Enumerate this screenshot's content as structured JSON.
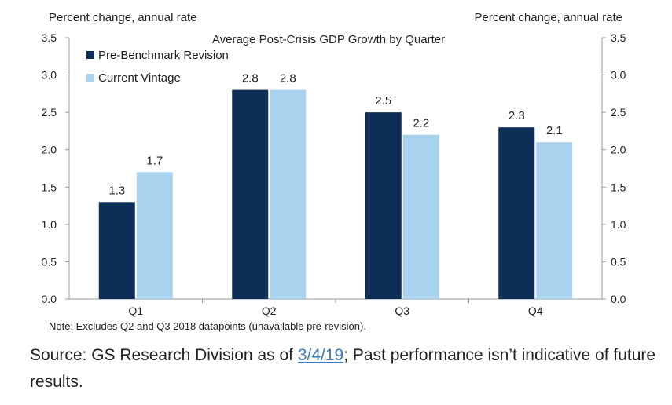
{
  "chart_data": {
    "type": "bar",
    "title": "Average Post-Crisis GDP Growth by Quarter",
    "ylabel_left": "Percent change, annual rate",
    "ylabel_right": "Percent change, annual rate",
    "categories": [
      "Q1",
      "Q2",
      "Q3",
      "Q4"
    ],
    "series": [
      {
        "name": "Pre-Benchmark Revision",
        "values": [
          1.3,
          2.8,
          2.5,
          2.3
        ],
        "labels": [
          "1.3",
          "2.8",
          "2.5",
          "2.3"
        ],
        "color": "#0d2f57"
      },
      {
        "name": "Current Vintage",
        "values": [
          1.7,
          2.8,
          2.2,
          2.1
        ],
        "labels": [
          "1.7",
          "2.8",
          "2.2",
          "2.1"
        ],
        "color": "#a9d2ee"
      }
    ],
    "ylim": [
      0,
      3.5
    ],
    "yticks": [
      "0.0",
      "0.5",
      "1.0",
      "1.5",
      "2.0",
      "2.5",
      "3.0",
      "3.5"
    ],
    "legend_position": "top-left",
    "grid": false,
    "note": "Note: Excludes Q2 and Q3 2018 datapoints (unavailable pre-revision)."
  },
  "source": {
    "prefix": "Source: GS Research Division as of ",
    "link_text": "3/4/19",
    "suffix": "; Past performance isn’t indicative of future results."
  }
}
